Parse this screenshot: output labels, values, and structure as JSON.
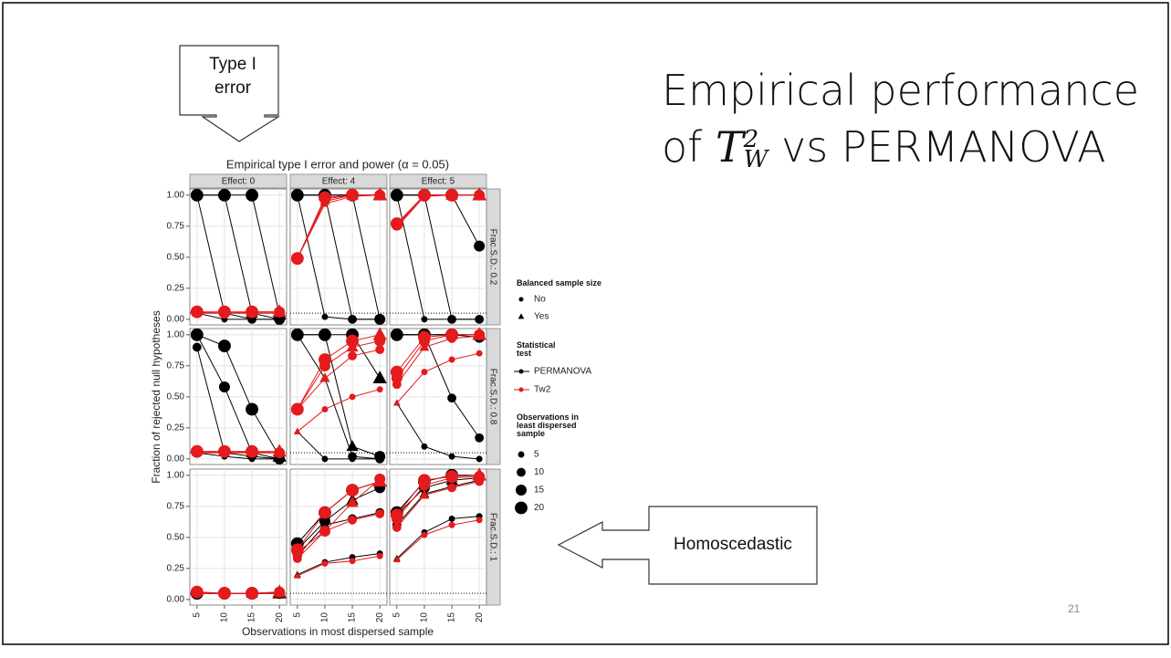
{
  "slide": {
    "title_start": "Empirical performance of",
    "title_math": "T",
    "title_sub": "W",
    "title_sup": "2",
    "title_end": "vs PERMANOVA",
    "callout_top": "Type I error",
    "callout_right": "Homoscedastic",
    "page_number": "21"
  },
  "chart_data": {
    "type": "line",
    "title": "Empirical type I error and power (α = 0.05)",
    "x_label": "Observations in most dispersed sample",
    "y_label": "Fraction of rejected null hypotheses",
    "x": [
      5,
      10,
      15,
      20
    ],
    "xlim": [
      3.7,
      21.3
    ],
    "xticks": [
      5,
      10,
      15,
      20
    ],
    "ylim": [
      -0.045,
      1.05
    ],
    "yticks": [
      {
        "value": 0,
        "label": "0.00"
      },
      {
        "value": 0.25,
        "label": "0.25"
      },
      {
        "value": 0.5,
        "label": "0.50"
      },
      {
        "value": 0.75,
        "label": "0.75"
      },
      {
        "value": 1,
        "label": "1.00"
      }
    ],
    "grid": true,
    "reference_line": 0.05,
    "columns": [
      "Effect: 0",
      "Effect: 4",
      "Effect: 5"
    ],
    "rows": [
      "Frac.S.D.: 0.2",
      "Frac.S.D.: 0.8",
      "Frac.S.D.: 1"
    ],
    "legend": {
      "balanced_title": "Balanced sample size",
      "balanced": [
        "No",
        "Yes"
      ],
      "test_title": "Statistical test",
      "size_title": "Observations in least dispersed sample",
      "sizes": [
        5,
        10,
        15,
        20
      ]
    },
    "panels": [
      [
        {
          "series": [
            {
              "name": "PERMANOVA",
              "color": "#000000",
              "size": 5,
              "values": [
                0.05,
                0,
                0,
                0
              ]
            },
            {
              "name": "PERMANOVA",
              "color": "#000000",
              "size": 10,
              "values": [
                1,
                0.05,
                0,
                0
              ]
            },
            {
              "name": "PERMANOVA",
              "color": "#000000",
              "size": 15,
              "values": [
                1,
                1,
                0.05,
                0
              ]
            },
            {
              "name": "PERMANOVA",
              "color": "#000000",
              "size": 20,
              "values": [
                1,
                1,
                1,
                0.04
              ]
            },
            {
              "name": "Tw2",
              "color": "#e41a1c",
              "size": 5,
              "values": [
                0.05,
                0.05,
                0.05,
                0.05
              ]
            },
            {
              "name": "Tw2",
              "color": "#e41a1c",
              "size": 10,
              "values": [
                0.05,
                0.05,
                0.05,
                0.05
              ]
            },
            {
              "name": "Tw2",
              "color": "#e41a1c",
              "size": 15,
              "values": [
                0.06,
                0.05,
                0.06,
                0.06
              ]
            },
            {
              "name": "Tw2",
              "color": "#e41a1c",
              "size": 20,
              "values": [
                0.06,
                0.06,
                0.06,
                0.06
              ]
            }
          ]
        },
        {
          "series": [
            {
              "name": "PERMANOVA",
              "color": "#000000",
              "size": 5,
              "values": [
                1,
                0.02,
                0,
                0
              ]
            },
            {
              "name": "PERMANOVA",
              "color": "#000000",
              "size": 10,
              "values": [
                1,
                1,
                0,
                0
              ]
            },
            {
              "name": "PERMANOVA",
              "color": "#000000",
              "size": 15,
              "values": [
                1,
                1,
                1,
                0
              ]
            },
            {
              "name": "PERMANOVA",
              "color": "#000000",
              "size": 20,
              "values": [
                1,
                1,
                1,
                1
              ]
            },
            {
              "name": "Tw2",
              "color": "#e41a1c",
              "size": 5,
              "values": [
                0.49,
                0.93,
                0.99,
                1
              ]
            },
            {
              "name": "Tw2",
              "color": "#e41a1c",
              "size": 10,
              "values": [
                0.49,
                0.95,
                1,
                1
              ]
            },
            {
              "name": "Tw2",
              "color": "#e41a1c",
              "size": 15,
              "values": [
                0.49,
                0.97,
                1,
                1
              ]
            },
            {
              "name": "Tw2",
              "color": "#e41a1c",
              "size": 20,
              "values": [
                0.49,
                0.98,
                1,
                1
              ]
            }
          ]
        },
        {
          "series": [
            {
              "name": "PERMANOVA",
              "color": "#000000",
              "size": 5,
              "values": [
                1,
                0,
                0,
                0
              ]
            },
            {
              "name": "PERMANOVA",
              "color": "#000000",
              "size": 10,
              "values": [
                1,
                1,
                0,
                0
              ]
            },
            {
              "name": "PERMANOVA",
              "color": "#000000",
              "size": 15,
              "values": [
                1,
                1,
                1,
                0.59
              ]
            },
            {
              "name": "PERMANOVA",
              "color": "#000000",
              "size": 20,
              "values": [
                1,
                1,
                1,
                1
              ]
            },
            {
              "name": "Tw2",
              "color": "#e41a1c",
              "size": 5,
              "values": [
                0.74,
                0.99,
                1,
                1
              ]
            },
            {
              "name": "Tw2",
              "color": "#e41a1c",
              "size": 10,
              "values": [
                0.75,
                1,
                1,
                1
              ]
            },
            {
              "name": "Tw2",
              "color": "#e41a1c",
              "size": 15,
              "values": [
                0.76,
                1,
                1,
                1
              ]
            },
            {
              "name": "Tw2",
              "color": "#e41a1c",
              "size": 20,
              "values": [
                0.77,
                1,
                1,
                1
              ]
            }
          ]
        }
      ],
      [
        {
          "series": [
            {
              "name": "PERMANOVA",
              "color": "#000000",
              "size": 5,
              "values": [
                0.05,
                0.02,
                0,
                0
              ]
            },
            {
              "name": "PERMANOVA",
              "color": "#000000",
              "size": 10,
              "values": [
                0.9,
                0.05,
                0.02,
                0
              ]
            },
            {
              "name": "PERMANOVA",
              "color": "#000000",
              "size": 15,
              "values": [
                1,
                0.58,
                0.05,
                0
              ]
            },
            {
              "name": "PERMANOVA",
              "color": "#000000",
              "size": 20,
              "values": [
                1,
                0.91,
                0.4,
                0.02
              ]
            },
            {
              "name": "Tw2",
              "color": "#e41a1c",
              "size": 5,
              "values": [
                0.05,
                0.05,
                0.05,
                0.05
              ]
            },
            {
              "name": "Tw2",
              "color": "#e41a1c",
              "size": 10,
              "values": [
                0.05,
                0.06,
                0.05,
                0.05
              ]
            },
            {
              "name": "Tw2",
              "color": "#e41a1c",
              "size": 15,
              "values": [
                0.06,
                0.06,
                0.06,
                0.05
              ]
            },
            {
              "name": "Tw2",
              "color": "#e41a1c",
              "size": 20,
              "values": [
                0.06,
                0.06,
                0.06,
                0.06
              ]
            }
          ]
        },
        {
          "series": [
            {
              "name": "PERMANOVA",
              "color": "#000000",
              "size": 5,
              "values": [
                0.22,
                0,
                0,
                0
              ]
            },
            {
              "name": "PERMANOVA",
              "color": "#000000",
              "size": 10,
              "values": [
                1,
                0.65,
                0.02,
                0
              ]
            },
            {
              "name": "PERMANOVA",
              "color": "#000000",
              "size": 15,
              "values": [
                1,
                1,
                0.1,
                0.02
              ]
            },
            {
              "name": "PERMANOVA",
              "color": "#000000",
              "size": 20,
              "values": [
                1,
                1,
                1,
                0.65
              ]
            },
            {
              "name": "Tw2",
              "color": "#e41a1c",
              "size": 5,
              "values": [
                0.22,
                0.4,
                0.5,
                0.56
              ]
            },
            {
              "name": "Tw2",
              "color": "#e41a1c",
              "size": 10,
              "values": [
                0.4,
                0.65,
                0.83,
                0.88
              ]
            },
            {
              "name": "Tw2",
              "color": "#e41a1c",
              "size": 15,
              "values": [
                0.4,
                0.75,
                0.9,
                0.95
              ]
            },
            {
              "name": "Tw2",
              "color": "#e41a1c",
              "size": 20,
              "values": [
                0.4,
                0.8,
                0.95,
                1
              ]
            }
          ]
        },
        {
          "series": [
            {
              "name": "PERMANOVA",
              "color": "#000000",
              "size": 5,
              "values": [
                0.45,
                0.1,
                0.02,
                0
              ]
            },
            {
              "name": "PERMANOVA",
              "color": "#000000",
              "size": 10,
              "values": [
                1,
                1,
                0.49,
                0.17
              ]
            },
            {
              "name": "PERMANOVA",
              "color": "#000000",
              "size": 15,
              "values": [
                1,
                1,
                1,
                0.98
              ]
            },
            {
              "name": "PERMANOVA",
              "color": "#000000",
              "size": 20,
              "values": [
                1,
                1,
                1,
                1
              ]
            },
            {
              "name": "Tw2",
              "color": "#e41a1c",
              "size": 5,
              "values": [
                0.45,
                0.7,
                0.8,
                0.85
              ]
            },
            {
              "name": "Tw2",
              "color": "#e41a1c",
              "size": 10,
              "values": [
                0.6,
                0.9,
                0.97,
                0.99
              ]
            },
            {
              "name": "Tw2",
              "color": "#e41a1c",
              "size": 15,
              "values": [
                0.65,
                0.95,
                1,
                1
              ]
            },
            {
              "name": "Tw2",
              "color": "#e41a1c",
              "size": 20,
              "values": [
                0.7,
                0.98,
                1,
                1
              ]
            }
          ]
        }
      ],
      [
        {
          "series": [
            {
              "name": "PERMANOVA",
              "color": "#000000",
              "size": 5,
              "values": [
                0.05,
                0.05,
                0.05,
                0.05
              ]
            },
            {
              "name": "PERMANOVA",
              "color": "#000000",
              "size": 10,
              "values": [
                0.05,
                0.05,
                0.05,
                0.05
              ]
            },
            {
              "name": "PERMANOVA",
              "color": "#000000",
              "size": 15,
              "values": [
                0.05,
                0.05,
                0.05,
                0.05
              ]
            },
            {
              "name": "PERMANOVA",
              "color": "#000000",
              "size": 20,
              "values": [
                0.05,
                0.05,
                0.05,
                0.05
              ]
            },
            {
              "name": "Tw2",
              "color": "#e41a1c",
              "size": 5,
              "values": [
                0.05,
                0.05,
                0.05,
                0.05
              ]
            },
            {
              "name": "Tw2",
              "color": "#e41a1c",
              "size": 10,
              "values": [
                0.05,
                0.05,
                0.05,
                0.05
              ]
            },
            {
              "name": "Tw2",
              "color": "#e41a1c",
              "size": 15,
              "values": [
                0.06,
                0.05,
                0.05,
                0.06
              ]
            },
            {
              "name": "Tw2",
              "color": "#e41a1c",
              "size": 20,
              "values": [
                0.06,
                0.05,
                0.05,
                0.06
              ]
            }
          ]
        },
        {
          "series": [
            {
              "name": "PERMANOVA",
              "color": "#000000",
              "size": 5,
              "values": [
                0.2,
                0.3,
                0.34,
                0.37
              ]
            },
            {
              "name": "PERMANOVA",
              "color": "#000000",
              "size": 10,
              "values": [
                0.35,
                0.6,
                0.65,
                0.7
              ]
            },
            {
              "name": "PERMANOVA",
              "color": "#000000",
              "size": 15,
              "values": [
                0.4,
                0.63,
                0.8,
                0.9
              ]
            },
            {
              "name": "PERMANOVA",
              "color": "#000000",
              "size": 20,
              "values": [
                0.45,
                0.7,
                0.88,
                0.95
              ]
            },
            {
              "name": "Tw2",
              "color": "#e41a1c",
              "size": 5,
              "values": [
                0.19,
                0.29,
                0.31,
                0.35
              ]
            },
            {
              "name": "Tw2",
              "color": "#e41a1c",
              "size": 10,
              "values": [
                0.33,
                0.55,
                0.64,
                0.69
              ]
            },
            {
              "name": "Tw2",
              "color": "#e41a1c",
              "size": 15,
              "values": [
                0.38,
                0.55,
                0.78,
                0.97
              ]
            },
            {
              "name": "Tw2",
              "color": "#e41a1c",
              "size": 20,
              "values": [
                0.4,
                0.7,
                0.88,
                0.95
              ]
            }
          ]
        },
        {
          "series": [
            {
              "name": "PERMANOVA",
              "color": "#000000",
              "size": 5,
              "values": [
                0.33,
                0.54,
                0.65,
                0.67
              ]
            },
            {
              "name": "PERMANOVA",
              "color": "#000000",
              "size": 10,
              "values": [
                0.6,
                0.85,
                0.91,
                0.96
              ]
            },
            {
              "name": "PERMANOVA",
              "color": "#000000",
              "size": 15,
              "values": [
                0.68,
                0.9,
                0.96,
                0.98
              ]
            },
            {
              "name": "PERMANOVA",
              "color": "#000000",
              "size": 20,
              "values": [
                0.7,
                0.95,
                1,
                1
              ]
            },
            {
              "name": "Tw2",
              "color": "#e41a1c",
              "size": 5,
              "values": [
                0.32,
                0.52,
                0.6,
                0.64
              ]
            },
            {
              "name": "Tw2",
              "color": "#e41a1c",
              "size": 10,
              "values": [
                0.58,
                0.84,
                0.9,
                0.95
              ]
            },
            {
              "name": "Tw2",
              "color": "#e41a1c",
              "size": 15,
              "values": [
                0.65,
                0.92,
                0.98,
                0.99
              ]
            },
            {
              "name": "Tw2",
              "color": "#e41a1c",
              "size": 20,
              "values": [
                0.68,
                0.96,
                0.99,
                1
              ]
            }
          ]
        }
      ]
    ]
  }
}
